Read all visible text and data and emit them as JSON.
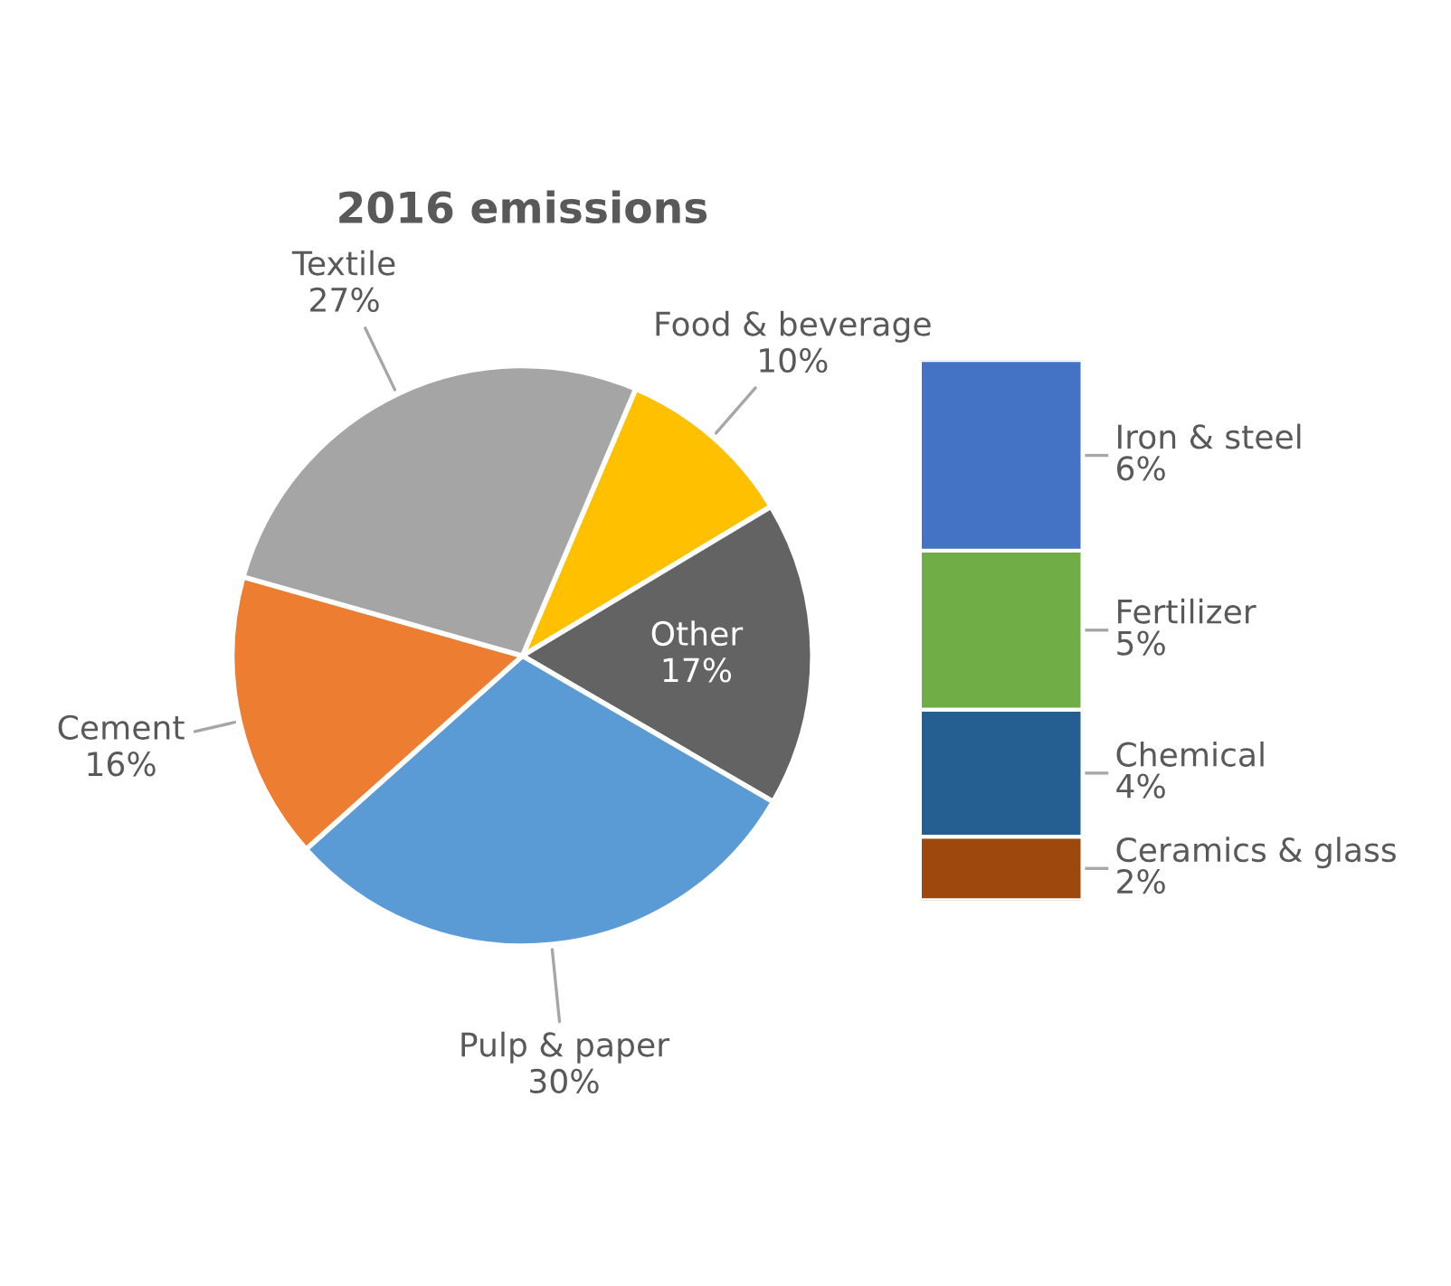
{
  "chart_data": [
    {
      "type": "pie",
      "title": "2016 emissions",
      "categories": [
        "Food & beverage",
        "Other",
        "Pulp & paper",
        "Cement",
        "Textile"
      ],
      "values": [
        10,
        17,
        30,
        16,
        27
      ],
      "colors": [
        "#ffc000",
        "#636363",
        "#5b9bd5",
        "#ed7d31",
        "#a5a5a5"
      ],
      "value_labels": [
        "10%",
        "17%",
        "30%",
        "16%",
        "27%"
      ],
      "legend": false
    },
    {
      "type": "bar",
      "stacked": true,
      "categories": [
        null
      ],
      "legend": false,
      "series": [
        {
          "name": "Ceramics & glass",
          "color": "#9e480e",
          "values": [
            2
          ],
          "value_labels": [
            "2%"
          ]
        },
        {
          "name": "Chemical",
          "color": "#255e91",
          "values": [
            4
          ],
          "value_labels": [
            "4%"
          ]
        },
        {
          "name": "Fertilizer",
          "color": "#70ad47",
          "values": [
            5
          ],
          "value_labels": [
            "5%"
          ]
        },
        {
          "name": "Iron & steel",
          "color": "#4472c4",
          "values": [
            6
          ],
          "value_labels": [
            "6%"
          ]
        }
      ]
    }
  ]
}
